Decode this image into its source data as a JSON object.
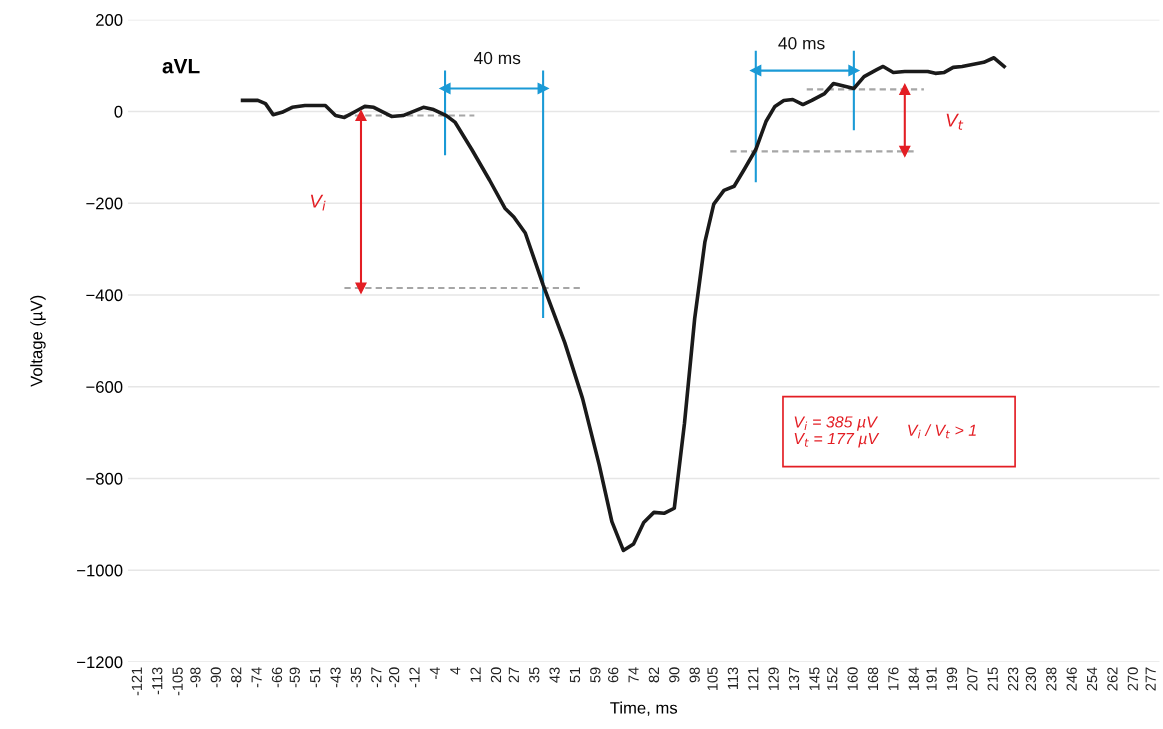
{
  "chart_data": {
    "type": "line",
    "title": "aVL",
    "xlabel": "Time, ms",
    "ylabel": "Voltage (µV)",
    "xlim": [
      -125,
      280
    ],
    "xticks": [
      -121,
      -113,
      -105,
      -98,
      -90,
      -82,
      -74,
      -66,
      -59,
      -51,
      -43,
      -35,
      -27,
      -20,
      -12,
      -4,
      4,
      12,
      20,
      27,
      35,
      43,
      51,
      59,
      66,
      74,
      82,
      90,
      98,
      105,
      113,
      121,
      129,
      137,
      145,
      152,
      160,
      168,
      176,
      184,
      191,
      199,
      207,
      215,
      223,
      230,
      238,
      246,
      254,
      262,
      270,
      277
    ],
    "ylim": [
      -1200,
      200
    ],
    "yticks": [
      200,
      {
        "value": 0,
        "label": "0"
      },
      {
        "value": -200,
        "label": "−200"
      },
      {
        "value": -400,
        "label": "−400"
      },
      {
        "value": -600,
        "label": "−600"
      },
      {
        "value": -800,
        "label": "−800"
      },
      {
        "value": -1000,
        "label": "−1000"
      },
      {
        "value": -1200,
        "label": "−1200"
      }
    ],
    "grid": "y",
    "series": [
      {
        "color": "#1a1a1a",
        "line_style": "solid",
        "x": [
          -80,
          -74,
          -71,
          -68,
          -64.5,
          -60.5,
          -55.5,
          -47.5,
          -43.5,
          -40,
          -35,
          -32,
          -28.5,
          -21.5,
          -17,
          -9,
          -5,
          0,
          3.5,
          10,
          17,
          23,
          26.5,
          31,
          38,
          46.5,
          53.5,
          60,
          65,
          69.5,
          73.5,
          77.5,
          81.5,
          85.5,
          89.5,
          93.5,
          97.5,
          101.5,
          105,
          109,
          113,
          117,
          121.5,
          125.5,
          129,
          132.5,
          136,
          140,
          143.5,
          148.5,
          152,
          160,
          164,
          169,
          171.5,
          175.5,
          180,
          189,
          192,
          195.5,
          199,
          202.5,
          211,
          215,
          219
        ],
        "values": [
          24,
          24,
          17,
          -7,
          -2,
          9,
          13,
          13,
          -9,
          -13,
          2,
          11,
          9,
          -11,
          -9,
          9,
          4,
          -9,
          -24,
          -83,
          -150,
          -211,
          -230,
          -265,
          -378,
          -504,
          -626,
          -770,
          -894,
          -957,
          -943,
          -896,
          -874,
          -876,
          -865,
          -680,
          -452,
          -285,
          -202,
          -172,
          -163,
          -126,
          -83,
          -22,
          11,
          24,
          26,
          15,
          24,
          39,
          61,
          50,
          76,
          91,
          98,
          85,
          87,
          87,
          83,
          85,
          96,
          98,
          107,
          117,
          98
        ]
      },
      {
        "color": "#a6a6a6",
        "line_style": "dashed",
        "x": [
          -40,
          11
        ],
        "values": [
          -9,
          -9
        ]
      },
      {
        "color": "#a6a6a6",
        "line_style": "dashed",
        "x": [
          -40,
          53.5
        ],
        "values": [
          -385,
          -385
        ]
      },
      {
        "color": "#a6a6a6",
        "line_style": "dashed",
        "x": [
          111.5,
          185
        ],
        "values": [
          -87,
          -87
        ]
      },
      {
        "color": "#a6a6a6",
        "line_style": "dashed",
        "x": [
          141.5,
          187.5
        ],
        "values": [
          48,
          48
        ]
      },
      {
        "color": "#1a9ad6",
        "line_style": "solid",
        "x": [
          -0.5,
          -0.5
        ],
        "values": [
          87,
          -93
        ]
      },
      {
        "color": "#1a9ad6",
        "line_style": "solid",
        "x": [
          38,
          38
        ],
        "values": [
          87,
          -448
        ]
      },
      {
        "color": "#1a9ad6",
        "line_style": "solid",
        "x": [
          121.5,
          121.5
        ],
        "values": [
          130,
          -152
        ]
      },
      {
        "color": "#1a9ad6",
        "line_style": "solid",
        "x": [
          160,
          160
        ],
        "values": [
          130,
          -39
        ]
      },
      {
        "color": "#1a9ad6",
        "line_style": "solid",
        "marker": "triangle",
        "x": [
          -0.5,
          38
        ],
        "values": [
          50,
          50
        ]
      },
      {
        "color": "#1a9ad6",
        "line_style": "solid",
        "marker": "triangle",
        "x": [
          121.5,
          160
        ],
        "values": [
          89,
          89
        ]
      },
      {
        "color": "#e31e24",
        "line_style": "solid",
        "marker": "triangle",
        "x": [
          -33.5,
          -33.5
        ],
        "values": [
          -9,
          -385
        ]
      },
      {
        "color": "#e31e24",
        "line_style": "solid",
        "marker": "triangle",
        "x": [
          180,
          180
        ],
        "values": [
          48,
          -87
        ]
      }
    ],
    "annotations": [
      "40 ms",
      "40 ms",
      "V$_{i}$",
      "V$_{t}$",
      "V$_{i}$ = 385 µV\nV$_{t}$ = 177 µV",
      "V$_{i}$ / V$_{t}$ > 1"
    ]
  }
}
